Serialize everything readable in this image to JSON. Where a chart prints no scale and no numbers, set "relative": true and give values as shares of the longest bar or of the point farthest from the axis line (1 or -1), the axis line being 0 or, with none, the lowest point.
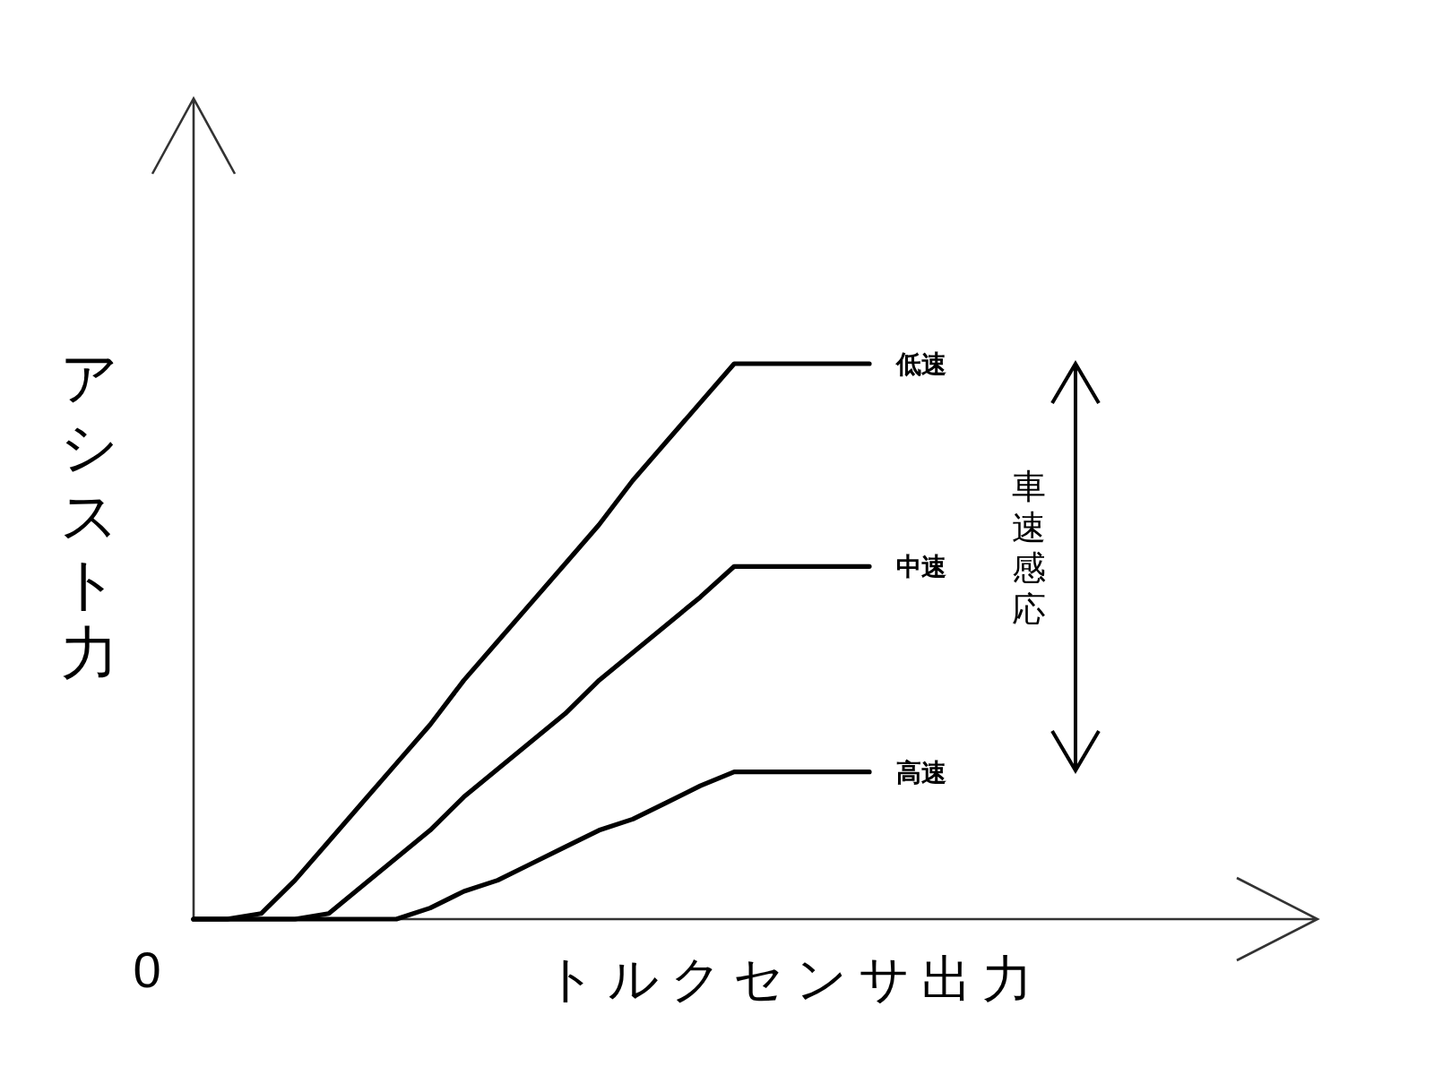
{
  "chart_data": {
    "type": "line",
    "relative": true,
    "xlabel": "トルクセンサ出力",
    "ylabel": "アシスト力",
    "categories": [
      null,
      null,
      null,
      null,
      null,
      null,
      null,
      null,
      null,
      null,
      null,
      null,
      null,
      null,
      null,
      null,
      null,
      null,
      null,
      null,
      null
    ],
    "series": [
      {
        "name": "低速",
        "color": "#000000",
        "values": [
          0,
          0,
          0.01,
          0.07,
          0.14,
          0.21,
          0.28,
          0.35,
          0.43,
          0.5,
          0.57,
          0.64,
          0.71,
          0.79,
          0.86,
          0.93,
          1,
          1,
          1,
          1,
          1
        ]
      },
      {
        "name": "中速",
        "color": "#000000",
        "values": [
          0,
          0,
          0,
          0,
          0.01,
          0.06,
          0.11,
          0.16,
          0.22,
          0.27,
          0.32,
          0.37,
          0.43,
          0.48,
          0.53,
          0.58,
          0.635,
          0.635,
          0.635,
          0.635,
          0.635
        ]
      },
      {
        "name": "高速",
        "color": "#000000",
        "values": [
          0,
          0,
          0,
          0,
          0,
          0,
          0,
          0.02,
          0.05,
          0.07,
          0.1,
          0.13,
          0.16,
          0.18,
          0.21,
          0.24,
          0.265,
          0.265,
          0.265,
          0.265,
          0.265
        ]
      }
    ],
    "annotations": [
      "0",
      "車速感応"
    ],
    "legend": false,
    "grid": false,
    "marker": "none",
    "line_style": "solid"
  }
}
